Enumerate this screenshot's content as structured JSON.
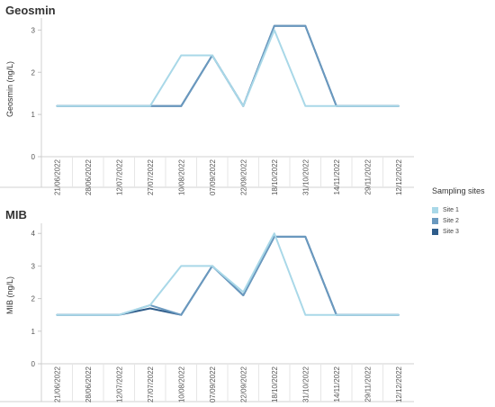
{
  "legend": {
    "title": "Sampling sites",
    "items": [
      {
        "label": "Site 1",
        "color": "#a9d8e8"
      },
      {
        "label": "Site 2",
        "color": "#6a99bf"
      },
      {
        "label": "Site 3",
        "color": "#2e5c8a"
      }
    ]
  },
  "chart_data": [
    {
      "type": "line",
      "title": "Geosmin",
      "ylabel": "Geosmin (ng/L)",
      "xlabel": "",
      "ylim": [
        0,
        3.2
      ],
      "yticks": [
        0,
        1,
        2,
        3
      ],
      "x": [
        "21/06/2022",
        "28/06/2022",
        "12/07/2022",
        "27/07/2022",
        "10/08/2022",
        "07/09/2022",
        "22/09/2022",
        "18/10/2022",
        "31/10/2022",
        "14/11/2022",
        "29/11/2022",
        "12/12/2022"
      ],
      "series": [
        {
          "name": "Site 1",
          "color": "#a9d8e8",
          "values": [
            1.2,
            1.2,
            1.2,
            1.2,
            2.4,
            2.4,
            1.2,
            3.0,
            1.2,
            1.2,
            1.2,
            1.2
          ]
        },
        {
          "name": "Site 2",
          "color": "#6a99bf",
          "values": [
            1.2,
            1.2,
            1.2,
            1.2,
            1.2,
            2.4,
            1.2,
            3.1,
            3.1,
            1.2,
            1.2,
            1.2
          ]
        },
        {
          "name": "Site 3",
          "color": "#2e5c8a",
          "values": [
            1.2,
            1.2,
            1.2,
            1.2,
            1.2,
            2.4,
            1.2,
            3.1,
            3.1,
            1.2,
            1.2,
            1.2
          ]
        }
      ]
    },
    {
      "type": "line",
      "title": "MIB",
      "ylabel": "MIB (ng/L)",
      "xlabel": "",
      "ylim": [
        0,
        4.2
      ],
      "yticks": [
        0,
        1,
        2,
        3,
        4
      ],
      "x": [
        "21/06/2022",
        "28/06/2022",
        "12/07/2022",
        "27/07/2022",
        "10/08/2022",
        "07/09/2022",
        "22/09/2022",
        "18/10/2022",
        "31/10/2022",
        "14/11/2022",
        "29/11/2022",
        "12/12/2022"
      ],
      "series": [
        {
          "name": "Site 1",
          "color": "#a9d8e8",
          "values": [
            1.5,
            1.5,
            1.5,
            1.8,
            3.0,
            3.0,
            2.2,
            4.0,
            1.5,
            1.5,
            1.5,
            1.5
          ]
        },
        {
          "name": "Site 2",
          "color": "#6a99bf",
          "values": [
            1.5,
            1.5,
            1.5,
            1.8,
            1.5,
            3.0,
            2.1,
            3.9,
            3.9,
            1.5,
            1.5,
            1.5
          ]
        },
        {
          "name": "Site 3",
          "color": "#2e5c8a",
          "values": [
            1.5,
            1.5,
            1.5,
            1.7,
            1.5,
            3.0,
            2.1,
            3.9,
            3.9,
            1.5,
            1.5,
            1.5
          ]
        }
      ]
    }
  ]
}
